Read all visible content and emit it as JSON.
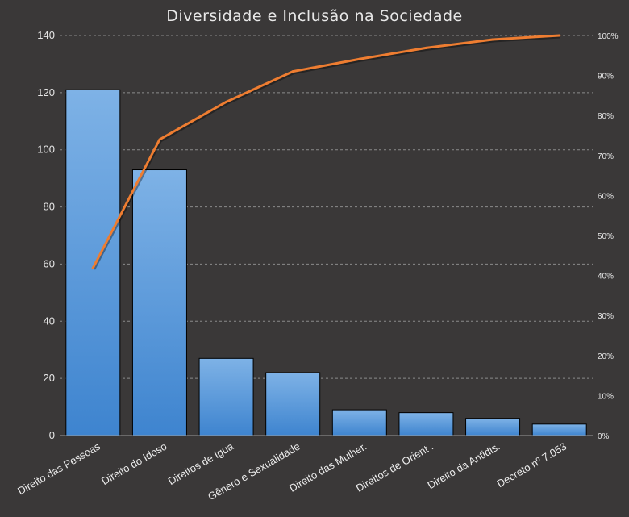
{
  "chart_data": {
    "type": "bar",
    "title": "Diversidade e Inclusão na Sociedade",
    "categories": [
      "Direito das Pessoas",
      "Direito do Idoso",
      "Direitos de Igua",
      "Gênero e Sexualidade",
      "Direito das Mulher.",
      "Direitos de Orient .",
      "Direito da Antidis.",
      "Decreto nº 7.053"
    ],
    "series": [
      {
        "type": "bar",
        "axis": "primary",
        "values": [
          121,
          93,
          27,
          22,
          9,
          8,
          6,
          4
        ]
      },
      {
        "type": "line",
        "axis": "secondary",
        "values": [
          41.9,
          74.0,
          83.4,
          91.0,
          94.1,
          96.9,
          99.0,
          100
        ]
      }
    ],
    "ylim": [
      0,
      140
    ],
    "yticks": [
      "0",
      "20",
      "40",
      "60",
      "80",
      "100",
      "120",
      "140"
    ],
    "y2lim": [
      0,
      100
    ],
    "y2ticks": [
      "0%",
      "10%",
      "20%",
      "30%",
      "40%",
      "50%",
      "60%",
      "70%",
      "80%",
      "90%",
      "100%"
    ],
    "grid": true,
    "legend": "none",
    "colors": {
      "background": "#3a3838",
      "bar_fill_top": "#7eb2e6",
      "bar_fill_bottom": "#3e84cf",
      "bar_stroke": "#000000",
      "line": "#ee7d31",
      "grid": "#8a8a8a",
      "text": "#e6e6e6"
    }
  }
}
